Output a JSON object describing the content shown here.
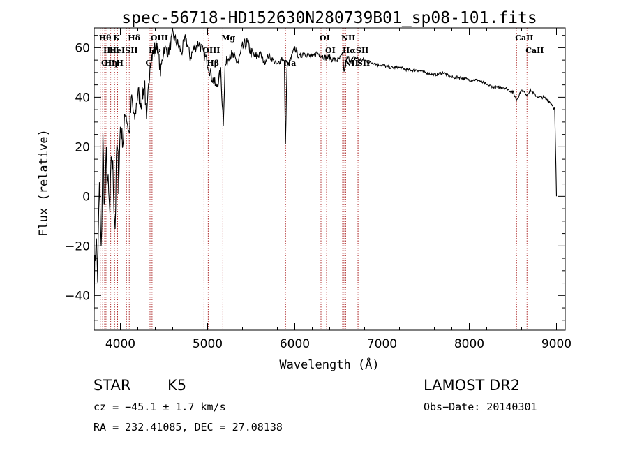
{
  "chart_data": {
    "type": "line",
    "title": "spec-56718-HD152630N280739B01_sp08-101.fits",
    "xlabel": "Wavelength (Å)",
    "ylabel": "Flux (relative)",
    "xlim": [
      3700,
      9100
    ],
    "ylim": [
      -54,
      68
    ],
    "xticks": [
      4000,
      5000,
      6000,
      7000,
      8000,
      9000
    ],
    "yticks": [
      -40,
      -20,
      0,
      20,
      40,
      60
    ],
    "grid": false,
    "series": [
      {
        "color": "#000000",
        "x": [
          3700,
          3720,
          3740,
          3760,
          3780,
          3800,
          3820,
          3840,
          3860,
          3880,
          3900,
          3920,
          3940,
          3960,
          3980,
          4000,
          4030,
          4060,
          4100,
          4130,
          4160,
          4200,
          4240,
          4280,
          4300,
          4340,
          4380,
          4420,
          4460,
          4500,
          4550,
          4600,
          4650,
          4700,
          4750,
          4800,
          4850,
          4900,
          4950,
          5000,
          5050,
          5100,
          5150,
          5180,
          5200,
          5250,
          5300,
          5350,
          5400,
          5450,
          5500,
          5550,
          5600,
          5650,
          5700,
          5750,
          5800,
          5850,
          5880,
          5893,
          5910,
          5950,
          6000,
          6050,
          6100,
          6150,
          6200,
          6250,
          6300,
          6350,
          6400,
          6450,
          6500,
          6550,
          6563,
          6600,
          6650,
          6700,
          6750,
          6800,
          6850,
          6900,
          6950,
          7000,
          7100,
          7200,
          7300,
          7400,
          7500,
          7600,
          7700,
          7800,
          7900,
          8000,
          8100,
          8200,
          8300,
          8400,
          8500,
          8542,
          8600,
          8662,
          8700,
          8750,
          8800,
          8850,
          8900,
          8950,
          8980,
          9000
        ],
        "y": [
          -38,
          -15,
          -32,
          5,
          -25,
          22,
          -5,
          15,
          2,
          -8,
          18,
          5,
          -12,
          20,
          8,
          28,
          22,
          35,
          25,
          40,
          30,
          42,
          38,
          46,
          28,
          55,
          58,
          62,
          50,
          60,
          58,
          65,
          62,
          58,
          64,
          56,
          60,
          62,
          58,
          54,
          48,
          44,
          50,
          30,
          52,
          58,
          56,
          54,
          60,
          62,
          58,
          56,
          58,
          54,
          57,
          55,
          53,
          56,
          54,
          20,
          52,
          55,
          60,
          56,
          58,
          57,
          56,
          58,
          57,
          56,
          56,
          55,
          55,
          57,
          50,
          56,
          55,
          56,
          55,
          55,
          54,
          54,
          53,
          53,
          52,
          52,
          51,
          51,
          50,
          49,
          50,
          48,
          48,
          47,
          47,
          45,
          44,
          44,
          42,
          39,
          43,
          41,
          43,
          41,
          40,
          40,
          39,
          37,
          35,
          0
        ]
      }
    ],
    "line_markers": [
      {
        "wavelength": 3770,
        "label": "Hθ",
        "row": 0
      },
      {
        "wavelength": 3797,
        "label": "OII",
        "row": 2
      },
      {
        "wavelength": 3820,
        "label": "HeI",
        "row": 1
      },
      {
        "wavelength": 3835,
        "label": "Hη",
        "row": 2
      },
      {
        "wavelength": 3889,
        "label": "HeI",
        "row": 1
      },
      {
        "wavelength": 3934,
        "label": "K",
        "row": 0
      },
      {
        "wavelength": 3968,
        "label": "H",
        "row": 2
      },
      {
        "wavelength": 4070,
        "label": "SII",
        "row": 1
      },
      {
        "wavelength": 4102,
        "label": "Hδ",
        "row": 0
      },
      {
        "wavelength": 4304,
        "label": "G",
        "row": 2
      },
      {
        "wavelength": 4340,
        "label": "Hγ",
        "row": 1
      },
      {
        "wavelength": 4363,
        "label": "OIII",
        "row": 0
      },
      {
        "wavelength": 4959,
        "label": "OIII",
        "row": 1
      },
      {
        "wavelength": 5007,
        "label": "Hβ",
        "row": 2
      },
      {
        "wavelength": 5175,
        "label": "Mg",
        "row": 0
      },
      {
        "wavelength": 5894,
        "label": "Na",
        "row": 2
      },
      {
        "wavelength": 6300,
        "label": "OI",
        "row": 0
      },
      {
        "wavelength": 6364,
        "label": "OI",
        "row": 1
      },
      {
        "wavelength": 6548,
        "label": "NII",
        "row": 0
      },
      {
        "wavelength": 6563,
        "label": "Hα",
        "row": 1
      },
      {
        "wavelength": 6583,
        "label": "NII",
        "row": 2
      },
      {
        "wavelength": 6716,
        "label": "SII",
        "row": 1
      },
      {
        "wavelength": 6731,
        "label": "SII",
        "row": 2
      },
      {
        "wavelength": 8542,
        "label": "CaII",
        "row": 0
      },
      {
        "wavelength": 8662,
        "label": "CaII",
        "row": 1
      }
    ]
  },
  "info": {
    "object_type": "STAR",
    "subclass": "K5",
    "redshift": "cz = −45.1 ± 1.7 km/s",
    "coordinates": "RA = 232.41085, DEC =  27.08138",
    "survey": "LAMOST DR2",
    "obs_date": "Obs−Date: 20140301"
  }
}
